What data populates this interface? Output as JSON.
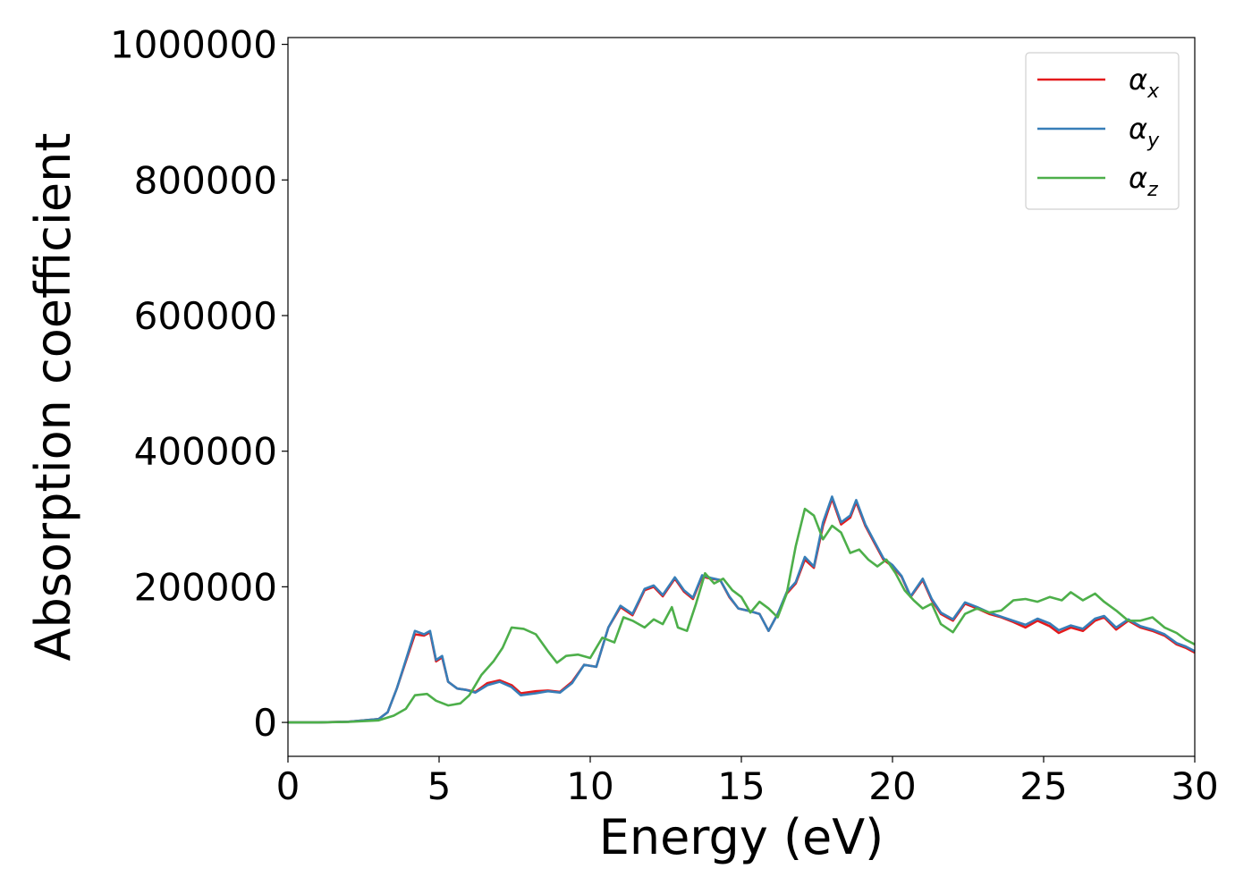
{
  "chart_data": {
    "type": "line",
    "xlabel": "Energy (eV)",
    "ylabel": "Absorption coefficient",
    "xlim": [
      0,
      30
    ],
    "ylim": [
      -50000,
      1010000
    ],
    "xticks": [
      0,
      5,
      10,
      15,
      20,
      25,
      30
    ],
    "yticks": [
      0,
      200000,
      400000,
      600000,
      800000,
      1000000
    ],
    "xtick_labels": [
      "0",
      "5",
      "10",
      "15",
      "20",
      "25",
      "30"
    ],
    "ytick_labels": [
      "0",
      "200000",
      "400000",
      "600000",
      "800000",
      "1000000"
    ],
    "grid": false,
    "legend_position": "top-right",
    "series": [
      {
        "name": "α",
        "subscript": "x",
        "color": "#e41a1c",
        "points": [
          [
            0,
            0
          ],
          [
            1,
            0
          ],
          [
            2,
            1000
          ],
          [
            3,
            5000
          ],
          [
            3.3,
            15000
          ],
          [
            3.6,
            50000
          ],
          [
            3.9,
            90000
          ],
          [
            4.2,
            130000
          ],
          [
            4.5,
            128000
          ],
          [
            4.7,
            133000
          ],
          [
            4.9,
            90000
          ],
          [
            5.1,
            96000
          ],
          [
            5.3,
            60000
          ],
          [
            5.6,
            50000
          ],
          [
            5.9,
            48000
          ],
          [
            6.2,
            45000
          ],
          [
            6.6,
            58000
          ],
          [
            7.0,
            62000
          ],
          [
            7.4,
            55000
          ],
          [
            7.7,
            43000
          ],
          [
            8.2,
            46000
          ],
          [
            8.6,
            47000
          ],
          [
            9.0,
            45000
          ],
          [
            9.4,
            60000
          ],
          [
            9.8,
            85000
          ],
          [
            10.2,
            82000
          ],
          [
            10.6,
            140000
          ],
          [
            11.0,
            170000
          ],
          [
            11.4,
            158000
          ],
          [
            11.8,
            195000
          ],
          [
            12.1,
            200000
          ],
          [
            12.4,
            186000
          ],
          [
            12.8,
            212000
          ],
          [
            13.1,
            193000
          ],
          [
            13.4,
            182000
          ],
          [
            13.7,
            215000
          ],
          [
            14.0,
            212000
          ],
          [
            14.3,
            210000
          ],
          [
            14.6,
            185000
          ],
          [
            14.9,
            168000
          ],
          [
            15.3,
            164000
          ],
          [
            15.6,
            160000
          ],
          [
            15.9,
            135000
          ],
          [
            16.2,
            160000
          ],
          [
            16.5,
            190000
          ],
          [
            16.8,
            205000
          ],
          [
            17.1,
            240000
          ],
          [
            17.4,
            228000
          ],
          [
            17.7,
            290000
          ],
          [
            18.0,
            330000
          ],
          [
            18.3,
            292000
          ],
          [
            18.6,
            302000
          ],
          [
            18.8,
            325000
          ],
          [
            19.1,
            290000
          ],
          [
            19.4,
            265000
          ],
          [
            19.7,
            240000
          ],
          [
            20.0,
            230000
          ],
          [
            20.3,
            215000
          ],
          [
            20.6,
            185000
          ],
          [
            21.0,
            210000
          ],
          [
            21.3,
            180000
          ],
          [
            21.6,
            160000
          ],
          [
            22.0,
            150000
          ],
          [
            22.4,
            175000
          ],
          [
            22.8,
            168000
          ],
          [
            23.2,
            160000
          ],
          [
            23.6,
            155000
          ],
          [
            24.0,
            148000
          ],
          [
            24.4,
            140000
          ],
          [
            24.8,
            150000
          ],
          [
            25.2,
            142000
          ],
          [
            25.5,
            132000
          ],
          [
            25.9,
            140000
          ],
          [
            26.3,
            135000
          ],
          [
            26.7,
            150000
          ],
          [
            27.0,
            155000
          ],
          [
            27.4,
            137000
          ],
          [
            27.8,
            150000
          ],
          [
            28.2,
            140000
          ],
          [
            28.6,
            135000
          ],
          [
            29.0,
            128000
          ],
          [
            29.4,
            115000
          ],
          [
            29.7,
            110000
          ],
          [
            30.0,
            103000
          ]
        ]
      },
      {
        "name": "α",
        "subscript": "y",
        "color": "#377eb8",
        "points": [
          [
            0,
            0
          ],
          [
            1,
            0
          ],
          [
            2,
            1000
          ],
          [
            3,
            5000
          ],
          [
            3.3,
            15000
          ],
          [
            3.6,
            50000
          ],
          [
            3.9,
            92000
          ],
          [
            4.2,
            135000
          ],
          [
            4.5,
            130000
          ],
          [
            4.7,
            135000
          ],
          [
            4.9,
            92000
          ],
          [
            5.1,
            98000
          ],
          [
            5.3,
            60000
          ],
          [
            5.6,
            50000
          ],
          [
            5.9,
            48000
          ],
          [
            6.2,
            44000
          ],
          [
            6.6,
            55000
          ],
          [
            7.0,
            60000
          ],
          [
            7.4,
            52000
          ],
          [
            7.7,
            40000
          ],
          [
            8.2,
            43000
          ],
          [
            8.6,
            46000
          ],
          [
            9.0,
            44000
          ],
          [
            9.4,
            58000
          ],
          [
            9.8,
            85000
          ],
          [
            10.2,
            82000
          ],
          [
            10.6,
            140000
          ],
          [
            11.0,
            172000
          ],
          [
            11.4,
            160000
          ],
          [
            11.8,
            197000
          ],
          [
            12.1,
            202000
          ],
          [
            12.4,
            188000
          ],
          [
            12.8,
            214000
          ],
          [
            13.1,
            195000
          ],
          [
            13.4,
            184000
          ],
          [
            13.7,
            217000
          ],
          [
            14.0,
            213000
          ],
          [
            14.3,
            210000
          ],
          [
            14.6,
            186000
          ],
          [
            14.9,
            168000
          ],
          [
            15.3,
            164000
          ],
          [
            15.6,
            160000
          ],
          [
            15.9,
            135000
          ],
          [
            16.2,
            160000
          ],
          [
            16.5,
            192000
          ],
          [
            16.8,
            207000
          ],
          [
            17.1,
            244000
          ],
          [
            17.4,
            230000
          ],
          [
            17.7,
            295000
          ],
          [
            18.0,
            333000
          ],
          [
            18.3,
            295000
          ],
          [
            18.6,
            305000
          ],
          [
            18.8,
            328000
          ],
          [
            19.1,
            292000
          ],
          [
            19.4,
            267000
          ],
          [
            19.7,
            242000
          ],
          [
            20.0,
            232000
          ],
          [
            20.3,
            216000
          ],
          [
            20.6,
            186000
          ],
          [
            21.0,
            212000
          ],
          [
            21.3,
            182000
          ],
          [
            21.6,
            162000
          ],
          [
            22.0,
            152000
          ],
          [
            22.4,
            177000
          ],
          [
            22.8,
            170000
          ],
          [
            23.2,
            162000
          ],
          [
            23.6,
            156000
          ],
          [
            24.0,
            150000
          ],
          [
            24.4,
            144000
          ],
          [
            24.8,
            153000
          ],
          [
            25.2,
            146000
          ],
          [
            25.5,
            136000
          ],
          [
            25.9,
            143000
          ],
          [
            26.3,
            138000
          ],
          [
            26.7,
            153000
          ],
          [
            27.0,
            157000
          ],
          [
            27.4,
            140000
          ],
          [
            27.8,
            152000
          ],
          [
            28.2,
            142000
          ],
          [
            28.6,
            137000
          ],
          [
            29.0,
            130000
          ],
          [
            29.4,
            117000
          ],
          [
            29.7,
            112000
          ],
          [
            30.0,
            105000
          ]
        ]
      },
      {
        "name": "α",
        "subscript": "z",
        "color": "#4daf4a",
        "points": [
          [
            0,
            0
          ],
          [
            1,
            0
          ],
          [
            2,
            800
          ],
          [
            3,
            3000
          ],
          [
            3.5,
            10000
          ],
          [
            3.9,
            20000
          ],
          [
            4.2,
            40000
          ],
          [
            4.6,
            42000
          ],
          [
            4.9,
            32000
          ],
          [
            5.3,
            25000
          ],
          [
            5.7,
            28000
          ],
          [
            6.0,
            40000
          ],
          [
            6.4,
            70000
          ],
          [
            6.8,
            90000
          ],
          [
            7.1,
            110000
          ],
          [
            7.4,
            140000
          ],
          [
            7.8,
            138000
          ],
          [
            8.2,
            130000
          ],
          [
            8.6,
            105000
          ],
          [
            8.9,
            88000
          ],
          [
            9.2,
            98000
          ],
          [
            9.6,
            100000
          ],
          [
            10.0,
            95000
          ],
          [
            10.4,
            125000
          ],
          [
            10.8,
            118000
          ],
          [
            11.1,
            155000
          ],
          [
            11.4,
            150000
          ],
          [
            11.8,
            140000
          ],
          [
            12.1,
            152000
          ],
          [
            12.4,
            145000
          ],
          [
            12.7,
            170000
          ],
          [
            12.9,
            140000
          ],
          [
            13.2,
            135000
          ],
          [
            13.5,
            175000
          ],
          [
            13.8,
            220000
          ],
          [
            14.1,
            205000
          ],
          [
            14.4,
            212000
          ],
          [
            14.7,
            195000
          ],
          [
            15.0,
            185000
          ],
          [
            15.3,
            162000
          ],
          [
            15.6,
            178000
          ],
          [
            15.9,
            168000
          ],
          [
            16.2,
            155000
          ],
          [
            16.5,
            190000
          ],
          [
            16.8,
            260000
          ],
          [
            17.1,
            315000
          ],
          [
            17.4,
            305000
          ],
          [
            17.7,
            270000
          ],
          [
            18.0,
            290000
          ],
          [
            18.3,
            280000
          ],
          [
            18.6,
            250000
          ],
          [
            18.9,
            255000
          ],
          [
            19.2,
            240000
          ],
          [
            19.5,
            230000
          ],
          [
            19.8,
            240000
          ],
          [
            20.1,
            220000
          ],
          [
            20.4,
            195000
          ],
          [
            20.7,
            180000
          ],
          [
            21.0,
            168000
          ],
          [
            21.3,
            175000
          ],
          [
            21.6,
            145000
          ],
          [
            22.0,
            133000
          ],
          [
            22.4,
            160000
          ],
          [
            22.8,
            168000
          ],
          [
            23.2,
            162000
          ],
          [
            23.6,
            165000
          ],
          [
            24.0,
            180000
          ],
          [
            24.4,
            182000
          ],
          [
            24.8,
            178000
          ],
          [
            25.2,
            185000
          ],
          [
            25.6,
            180000
          ],
          [
            25.9,
            192000
          ],
          [
            26.3,
            180000
          ],
          [
            26.7,
            190000
          ],
          [
            27.0,
            178000
          ],
          [
            27.4,
            165000
          ],
          [
            27.8,
            150000
          ],
          [
            28.2,
            150000
          ],
          [
            28.6,
            155000
          ],
          [
            29.0,
            140000
          ],
          [
            29.4,
            132000
          ],
          [
            29.7,
            122000
          ],
          [
            30.0,
            115000
          ]
        ]
      }
    ]
  }
}
